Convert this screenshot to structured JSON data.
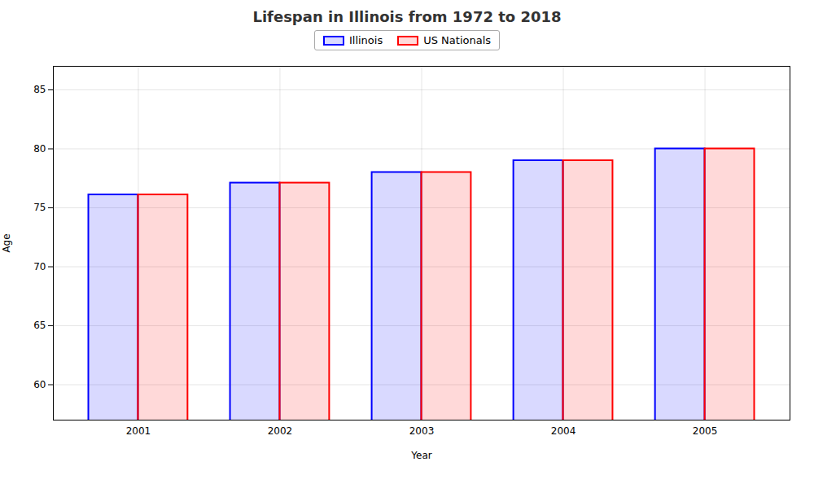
{
  "chart_data": {
    "type": "bar",
    "title": "Lifespan in Illinois from 1972 to 2018",
    "xlabel": "Year",
    "ylabel": "Age",
    "categories": [
      "2001",
      "2002",
      "2003",
      "2004",
      "2005"
    ],
    "series": [
      {
        "name": "Illinois",
        "color": "#0000ff",
        "values": [
          76.1,
          77.1,
          78.0,
          79.0,
          80.0
        ]
      },
      {
        "name": "US Nationals",
        "color": "#ff0000",
        "values": [
          76.1,
          77.1,
          78.0,
          79.0,
          80.0
        ]
      }
    ],
    "ylim": [
      57,
      87
    ],
    "yticks": [
      60,
      65,
      70,
      75,
      80,
      85
    ],
    "grid": true,
    "legend": "top"
  }
}
